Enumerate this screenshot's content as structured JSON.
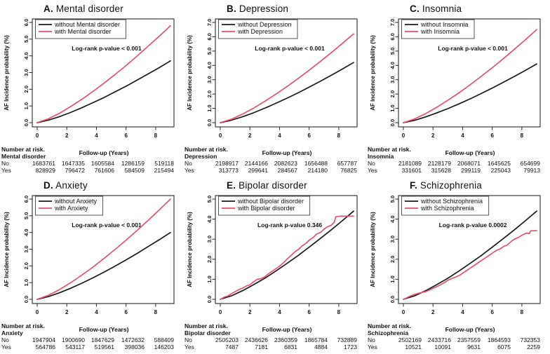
{
  "shared": {
    "ylabel": "AF Incidence probability (%)",
    "xlabel": "Follow-up (Years)",
    "risk_header": "Number at risk.",
    "row_labels": [
      "No",
      "Yes"
    ],
    "colors": {
      "without": "#1a1a1a",
      "with": "#e8516a"
    }
  },
  "chart_data": [
    {
      "type": "line",
      "letter": "A.",
      "title": "Mental disorder",
      "legend": {
        "without": "without Mental disorder",
        "with": "with Mental disorder"
      },
      "pvalue": "Log-rank p-value < 0.001",
      "xlabel": "Follow-up (Years)",
      "ylabel": "AF Incidence probability (%)",
      "xlim": [
        0,
        9
      ],
      "ylim": [
        0,
        6
      ],
      "xticks": [
        0,
        2,
        4,
        6,
        8
      ],
      "yticks": [
        "0.0",
        "1.0",
        "2.0",
        "3.0",
        "4.0",
        "5.0",
        "6.0"
      ],
      "series": {
        "without": {
          "x": [
            0,
            0.75,
            1.5,
            2.25,
            3,
            3.75,
            4.5,
            5.25,
            6,
            6.75,
            7.5,
            8.25,
            9
          ],
          "y": [
            0,
            0.15,
            0.36,
            0.61,
            0.89,
            1.19,
            1.5,
            1.84,
            2.18,
            2.55,
            2.92,
            3.3,
            3.7
          ]
        },
        "with": {
          "x": [
            0,
            0.75,
            1.5,
            2.25,
            3,
            3.75,
            4.5,
            5.25,
            6,
            6.75,
            7.5,
            8.25,
            9
          ],
          "y": [
            0,
            0.23,
            0.56,
            0.96,
            1.39,
            1.86,
            2.36,
            2.88,
            3.42,
            3.99,
            4.58,
            5.18,
            5.8
          ]
        }
      },
      "risk_group": "Mental disorder",
      "risk_no": [
        "1683761",
        "1647335",
        "1605584",
        "1286159",
        "519118"
      ],
      "risk_yes": [
        "828929",
        "796472",
        "761606",
        "584509",
        "215494"
      ]
    },
    {
      "type": "line",
      "letter": "B.",
      "title": "Depression",
      "legend": {
        "without": "without Depression",
        "with": "with Depression"
      },
      "pvalue": "Log-rank p-value < 0.001",
      "xlabel": "Follow-up (Years)",
      "ylabel": "AF Incidence probability (%)",
      "xlim": [
        0,
        9
      ],
      "ylim": [
        0,
        7
      ],
      "xticks": [
        0,
        2,
        4,
        6,
        8
      ],
      "yticks": [
        "0.0",
        "1.0",
        "2.0",
        "3.0",
        "4.0",
        "5.0",
        "6.0",
        "7.0"
      ],
      "series": {
        "without": {
          "x": [
            0,
            0.75,
            1.5,
            2.25,
            3,
            3.75,
            4.5,
            5.25,
            6,
            6.75,
            7.5,
            8.25,
            9
          ],
          "y": [
            0,
            0.17,
            0.41,
            0.69,
            1.01,
            1.35,
            1.71,
            2.08,
            2.48,
            2.89,
            3.31,
            3.75,
            4.2
          ]
        },
        "with": {
          "x": [
            0,
            0.75,
            1.5,
            2.25,
            3,
            3.75,
            4.5,
            5.25,
            6,
            6.75,
            7.5,
            8.25,
            9
          ],
          "y": [
            0,
            0.24,
            0.6,
            1.02,
            1.49,
            1.99,
            2.52,
            3.08,
            3.66,
            4.27,
            4.89,
            5.54,
            6.2
          ]
        }
      },
      "risk_group": "Depression",
      "risk_no": [
        "2198917",
        "2144166",
        "2082623",
        "1656488",
        "657787"
      ],
      "risk_yes": [
        "313773",
        "299641",
        "284567",
        "214180",
        "76825"
      ]
    },
    {
      "type": "line",
      "letter": "C.",
      "title": "Insomnia",
      "legend": {
        "without": "without Insomnia",
        "with": "with Insomnia"
      },
      "pvalue": "Log-rank p-value < 0.001",
      "xlabel": "Follow-up (Years)",
      "ylabel": "AF Incidence probability (%)",
      "xlim": [
        0,
        9
      ],
      "ylim": [
        0,
        7
      ],
      "xticks": [
        0,
        2,
        4,
        6,
        8
      ],
      "yticks": [
        "0.0",
        "1.0",
        "2.0",
        "3.0",
        "4.0",
        "5.0",
        "6.0",
        "7.0"
      ],
      "series": {
        "without": {
          "x": [
            0,
            0.75,
            1.5,
            2.25,
            3,
            3.75,
            4.5,
            5.25,
            6,
            6.75,
            7.5,
            8.25,
            9
          ],
          "y": [
            0,
            0.16,
            0.4,
            0.68,
            0.98,
            1.31,
            1.66,
            2.03,
            2.42,
            2.82,
            3.23,
            3.66,
            4.1
          ]
        },
        "with": {
          "x": [
            0,
            0.75,
            1.5,
            2.25,
            3,
            3.75,
            4.5,
            5.25,
            6,
            6.75,
            7.5,
            8.25,
            9
          ],
          "y": [
            0,
            0.26,
            0.63,
            1.07,
            1.56,
            2.08,
            2.64,
            3.23,
            3.84,
            4.47,
            5.13,
            5.8,
            6.5
          ]
        }
      },
      "risk_group": "Insomnia",
      "risk_no": [
        "2181089",
        "2128179",
        "2068071",
        "1645625",
        "654699"
      ],
      "risk_yes": [
        "331601",
        "315628",
        "299119",
        "225043",
        "79913"
      ]
    },
    {
      "type": "line",
      "letter": "D.",
      "title": "Anxiety",
      "legend": {
        "without": "without Anxiety",
        "with": "with Anxiety"
      },
      "pvalue": "Log-rank p-value < 0.001",
      "xlabel": "Follow-up (Years)",
      "ylabel": "AF Incidence probability (%)",
      "xlim": [
        0,
        9
      ],
      "ylim": [
        0,
        6
      ],
      "xticks": [
        0,
        2,
        4,
        6,
        8
      ],
      "yticks": [
        "0.0",
        "1.0",
        "2.0",
        "3.0",
        "4.0",
        "5.0",
        "6.0"
      ],
      "series": {
        "without": {
          "x": [
            0,
            0.75,
            1.5,
            2.25,
            3,
            3.75,
            4.5,
            5.25,
            6,
            6.75,
            7.5,
            8.25,
            9
          ],
          "y": [
            0,
            0.16,
            0.39,
            0.66,
            0.96,
            1.28,
            1.62,
            1.98,
            2.36,
            2.75,
            3.16,
            3.57,
            4.0
          ]
        },
        "with": {
          "x": [
            0,
            0.75,
            1.5,
            2.25,
            3,
            3.75,
            4.5,
            5.25,
            6,
            6.75,
            7.5,
            8.25,
            9
          ],
          "y": [
            0,
            0.24,
            0.58,
            0.99,
            1.44,
            1.92,
            2.44,
            2.98,
            3.54,
            4.13,
            4.73,
            5.36,
            6.0
          ]
        }
      },
      "risk_group": "Anxiety",
      "risk_no": [
        "1947904",
        "1900690",
        "1847629",
        "1472632",
        "588409"
      ],
      "risk_yes": [
        "564786",
        "543117",
        "519561",
        "398036",
        "146203"
      ]
    },
    {
      "type": "line",
      "letter": "E.",
      "title": "Bipolar disorder",
      "legend": {
        "without": "without Bipolar disorder",
        "with": "with Bipolar disorder"
      },
      "pvalue": "Log-rank p-value 0.346",
      "xlabel": "Follow-up (Years)",
      "ylabel": "AF Incidence probability (%)",
      "xlim": [
        0,
        9
      ],
      "ylim": [
        0,
        5
      ],
      "xticks": [
        0,
        2,
        4,
        6,
        8
      ],
      "yticks": [
        "0.0",
        "1.0",
        "2.0",
        "3.0",
        "4.0",
        "5.0"
      ],
      "series": {
        "without": {
          "x": [
            0,
            0.75,
            1.5,
            2.25,
            3,
            3.75,
            4.5,
            5.25,
            6,
            6.75,
            7.5,
            8.25,
            9
          ],
          "y": [
            0,
            0.17,
            0.43,
            0.73,
            1.05,
            1.41,
            1.79,
            2.18,
            2.6,
            3.03,
            3.47,
            3.93,
            4.4
          ]
        },
        "with": {
          "x": [
            0,
            0.3,
            0.5,
            0.8,
            1,
            1.3,
            1.5,
            1.8,
            2,
            2.2,
            2.5,
            2.7,
            3,
            3.2,
            3.5,
            3.8,
            4,
            4.3,
            4.5,
            4.8,
            5,
            5.3,
            5.5,
            5.8,
            6,
            6.3,
            6.5,
            6.8,
            7,
            7.2,
            7.5,
            7.7,
            7.8,
            8.1,
            9
          ],
          "y": [
            0,
            0.12,
            0.16,
            0.3,
            0.38,
            0.5,
            0.56,
            0.68,
            0.72,
            0.85,
            1.0,
            1.02,
            1.12,
            1.25,
            1.4,
            1.55,
            1.65,
            1.85,
            2.0,
            2.2,
            2.35,
            2.5,
            2.65,
            2.8,
            2.95,
            3.1,
            3.25,
            3.35,
            3.5,
            3.6,
            3.7,
            3.85,
            4.12,
            4.15,
            4.15
          ]
        }
      },
      "risk_group": "Bipolar disorder",
      "risk_no": [
        "2505203",
        "2436626",
        "2360359",
        "1865784",
        "732889"
      ],
      "risk_yes": [
        "7487",
        "7181",
        "6831",
        "4884",
        "1723"
      ]
    },
    {
      "type": "line",
      "letter": "F.",
      "title": "Schizophrenia",
      "legend": {
        "without": "without Schizophrenia",
        "with": "with Schizophrenia"
      },
      "pvalue": "Log-rank p-value 0.0002",
      "xlabel": "Follow-up (Years)",
      "ylabel": "AF Incidence probability (%)",
      "xlim": [
        0,
        9
      ],
      "ylim": [
        0,
        5
      ],
      "xticks": [
        0,
        2,
        4,
        6,
        8
      ],
      "yticks": [
        "0.0",
        "1.0",
        "2.0",
        "3.0",
        "4.0",
        "5.0"
      ],
      "series": {
        "without": {
          "x": [
            0,
            0.75,
            1.5,
            2.25,
            3,
            3.75,
            4.5,
            5.25,
            6,
            6.75,
            7.5,
            8.25,
            9
          ],
          "y": [
            0,
            0.17,
            0.43,
            0.73,
            1.05,
            1.41,
            1.79,
            2.18,
            2.6,
            3.03,
            3.47,
            3.93,
            4.4
          ]
        },
        "with": {
          "x": [
            0,
            0.3,
            0.5,
            0.8,
            1,
            1.3,
            1.5,
            1.8,
            2,
            2.3,
            2.5,
            2.8,
            3,
            3.3,
            3.5,
            3.8,
            4,
            4.3,
            4.5,
            4.8,
            5,
            5.3,
            5.5,
            5.8,
            6,
            6.3,
            6.5,
            6.8,
            7,
            7.3,
            7.5,
            7.8,
            8,
            8.3,
            8.5,
            8.6,
            9
          ],
          "y": [
            0,
            0.1,
            0.18,
            0.25,
            0.3,
            0.35,
            0.38,
            0.48,
            0.55,
            0.65,
            0.72,
            0.85,
            0.95,
            1.05,
            1.1,
            1.2,
            1.3,
            1.45,
            1.55,
            1.7,
            1.8,
            1.95,
            2.05,
            2.2,
            2.3,
            2.45,
            2.5,
            2.65,
            2.7,
            2.9,
            3.0,
            3.1,
            3.2,
            3.3,
            3.28,
            3.42,
            3.42
          ]
        }
      },
      "risk_group": "Schizophrenia",
      "risk_no": [
        "2502169",
        "2433716",
        "2357559",
        "1864593",
        "732353"
      ],
      "risk_yes": [
        "10521",
        "10091",
        "9631",
        "6075",
        "2259"
      ]
    }
  ]
}
